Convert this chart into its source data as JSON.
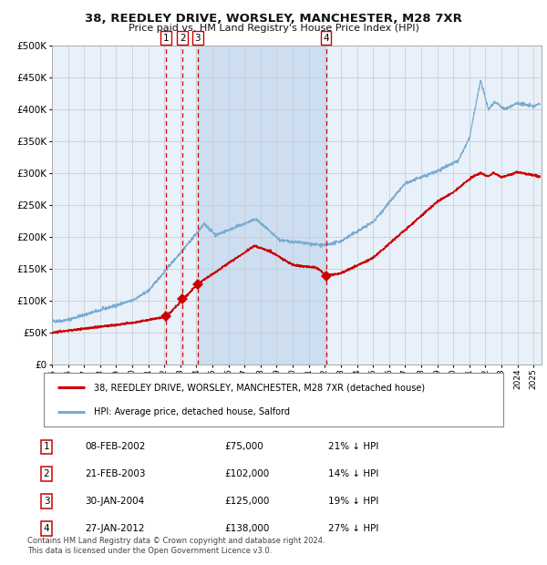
{
  "title1": "38, REEDLEY DRIVE, WORSLEY, MANCHESTER, M28 7XR",
  "title2": "Price paid vs. HM Land Registry's House Price Index (HPI)",
  "background_color": "#ffffff",
  "plot_bg_color": "#e8f0fa",
  "grid_color": "#c8c8c8",
  "x_start": 1995.0,
  "x_end": 2025.5,
  "y_min": 0,
  "y_max": 500000,
  "y_ticks": [
    0,
    50000,
    100000,
    150000,
    200000,
    250000,
    300000,
    350000,
    400000,
    450000,
    500000
  ],
  "x_ticks": [
    1995,
    1996,
    1997,
    1998,
    1999,
    2000,
    2001,
    2002,
    2003,
    2004,
    2005,
    2006,
    2007,
    2008,
    2009,
    2010,
    2011,
    2012,
    2013,
    2014,
    2015,
    2016,
    2017,
    2018,
    2019,
    2020,
    2021,
    2022,
    2023,
    2024,
    2025
  ],
  "sale_dates": [
    2002.12,
    2003.14,
    2004.08,
    2012.07
  ],
  "sale_prices": [
    75000,
    102000,
    125000,
    138000
  ],
  "sale_labels": [
    "1",
    "2",
    "3",
    "4"
  ],
  "shaded_region": [
    2004.08,
    2012.07
  ],
  "red_line_color": "#cc0000",
  "blue_line_color": "#7aabcf",
  "marker_color": "#cc0000",
  "vline_color": "#cc0000",
  "legend_label_red": "38, REEDLEY DRIVE, WORSLEY, MANCHESTER, M28 7XR (detached house)",
  "legend_label_blue": "HPI: Average price, detached house, Salford",
  "table_data": [
    [
      "1",
      "08-FEB-2002",
      "£75,000",
      "21% ↓ HPI"
    ],
    [
      "2",
      "21-FEB-2003",
      "£102,000",
      "14% ↓ HPI"
    ],
    [
      "3",
      "30-JAN-2004",
      "£125,000",
      "19% ↓ HPI"
    ],
    [
      "4",
      "27-JAN-2012",
      "£138,000",
      "27% ↓ HPI"
    ]
  ],
  "footnote": "Contains HM Land Registry data © Crown copyright and database right 2024.\nThis data is licensed under the Open Government Licence v3.0."
}
